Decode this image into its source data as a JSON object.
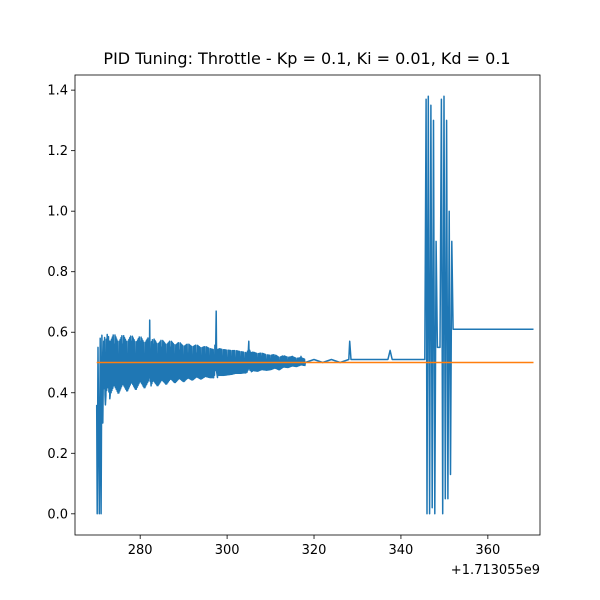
{
  "chart_data": {
    "type": "line",
    "title": "PID Tuning: Throttle - Kp = 0.1, Ki = 0.01, Kd = 0.1",
    "xlabel": "",
    "ylabel": "",
    "x_offset_label": "+1.713055e9",
    "xlim": [
      265,
      372
    ],
    "ylim": [
      -0.07,
      1.45
    ],
    "x_ticks": [
      280,
      300,
      320,
      340,
      360
    ],
    "y_ticks": [
      0.0,
      0.2,
      0.4,
      0.6,
      0.8,
      1.0,
      1.2,
      1.4
    ],
    "grid": false,
    "series": [
      {
        "color": "#1f77b4",
        "x": [
          270.0,
          270.1,
          270.3,
          270.6,
          270.8,
          271.0,
          271.2,
          271.4,
          271.6,
          272.0,
          272.5,
          273.0,
          274.0,
          275.0,
          276.0,
          277.0,
          278.0,
          279.0,
          280.0,
          281.0,
          282.0,
          282.2,
          282.4,
          283.0,
          284.0,
          285.0,
          286.0,
          287.0,
          288.0,
          289.0,
          290.0,
          291.0,
          292.0,
          293.0,
          294.0,
          295.0,
          296.0,
          297.0,
          297.5,
          297.7,
          298.0,
          299.0,
          300.0,
          301.0,
          302.0,
          303.0,
          304.0,
          304.5,
          305.0,
          305.5,
          306.0,
          307.0,
          308.0,
          309.0,
          310.0,
          311.0,
          312.0,
          313.0,
          314.0,
          315.0,
          316.0,
          317.0,
          318.0,
          320.0,
          322.0,
          324.0,
          326.0,
          328.0,
          328.2,
          328.5,
          330.0,
          332.0,
          334.0,
          336.0,
          337.0,
          337.5,
          338.0,
          340.0,
          342.0,
          344.0,
          345.5,
          345.8,
          346.0,
          346.3,
          346.6,
          346.9,
          347.2,
          347.5,
          347.8,
          348.1,
          348.4,
          348.7,
          349.0,
          349.3,
          349.6,
          349.9,
          350.2,
          350.5,
          350.8,
          351.1,
          351.4,
          351.7,
          352.0,
          352.3,
          352.6,
          353.0,
          360.0,
          370.5
        ],
        "values": [
          0.36,
          0.0,
          0.55,
          0.0,
          0.58,
          0.0,
          0.59,
          0.3,
          0.57,
          0.36,
          0.56,
          0.38,
          0.56,
          0.4,
          0.56,
          0.42,
          0.57,
          0.43,
          0.57,
          0.44,
          0.57,
          0.64,
          0.45,
          0.56,
          0.45,
          0.55,
          0.46,
          0.55,
          0.47,
          0.54,
          0.47,
          0.53,
          0.48,
          0.53,
          0.48,
          0.52,
          0.49,
          0.48,
          0.67,
          0.46,
          0.51,
          0.5,
          0.5,
          0.5,
          0.51,
          0.5,
          0.5,
          0.49,
          0.57,
          0.5,
          0.52,
          0.5,
          0.52,
          0.5,
          0.5,
          0.52,
          0.48,
          0.52,
          0.5,
          0.52,
          0.5,
          0.52,
          0.5,
          0.51,
          0.5,
          0.51,
          0.5,
          0.51,
          0.57,
          0.51,
          0.51,
          0.51,
          0.51,
          0.51,
          0.51,
          0.54,
          0.51,
          0.51,
          0.51,
          0.51,
          0.51,
          1.37,
          0.0,
          1.38,
          0.0,
          1.35,
          0.02,
          1.3,
          0.0,
          0.9,
          0.55,
          0.55,
          0.55,
          1.37,
          0.0,
          1.38,
          0.05,
          1.3,
          0.05,
          1.0,
          0.13,
          0.9,
          0.61,
          0.61,
          0.61,
          0.61,
          0.61,
          0.61
        ],
        "noise_band": {
          "x_range": [
            271.5,
            318
          ],
          "amplitude_start": 0.09,
          "amplitude_end": 0.01
        }
      },
      {
        "color": "#ff7f0e",
        "x": [
          270.0,
          370.5
        ],
        "values": [
          0.5,
          0.5
        ]
      }
    ]
  }
}
